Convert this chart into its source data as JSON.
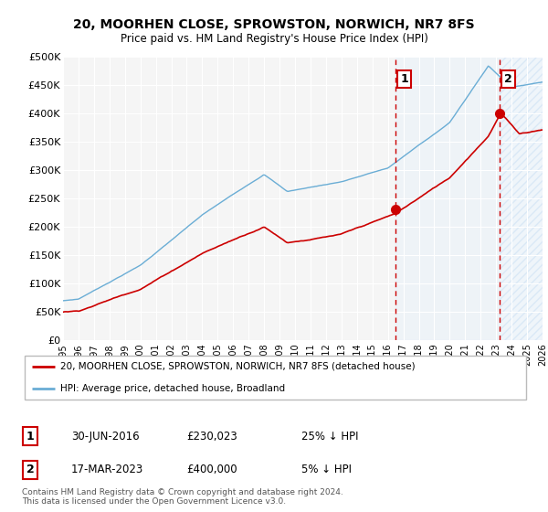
{
  "title": "20, MOORHEN CLOSE, SPROWSTON, NORWICH, NR7 8FS",
  "subtitle": "Price paid vs. HM Land Registry's House Price Index (HPI)",
  "ylim": [
    0,
    500000
  ],
  "yticks": [
    0,
    50000,
    100000,
    150000,
    200000,
    250000,
    300000,
    350000,
    400000,
    450000,
    500000
  ],
  "ytick_labels": [
    "£0",
    "£50K",
    "£100K",
    "£150K",
    "£200K",
    "£250K",
    "£300K",
    "£350K",
    "£400K",
    "£450K",
    "£500K"
  ],
  "hpi_color": "#6aadd5",
  "price_color": "#cc0000",
  "bg_color": "#f5f5f5",
  "grid_color": "white",
  "shade_color": "#ddeeff",
  "annotation1_date": "30-JUN-2016",
  "annotation1_price": "£230,023",
  "annotation1_hpi": "25% ↓ HPI",
  "annotation2_date": "17-MAR-2023",
  "annotation2_price": "£400,000",
  "annotation2_hpi": "5% ↓ HPI",
  "legend_label1": "20, MOORHEN CLOSE, SPROWSTON, NORWICH, NR7 8FS (detached house)",
  "legend_label2": "HPI: Average price, detached house, Broadland",
  "footer": "Contains HM Land Registry data © Crown copyright and database right 2024.\nThis data is licensed under the Open Government Licence v3.0.",
  "vline1_x": 2016.5,
  "vline2_x": 2023.2,
  "sale1_x": 2016.5,
  "sale1_y": 230000,
  "sale2_x": 2023.2,
  "sale2_y": 400000,
  "xmin": 1995,
  "xmax": 2026
}
